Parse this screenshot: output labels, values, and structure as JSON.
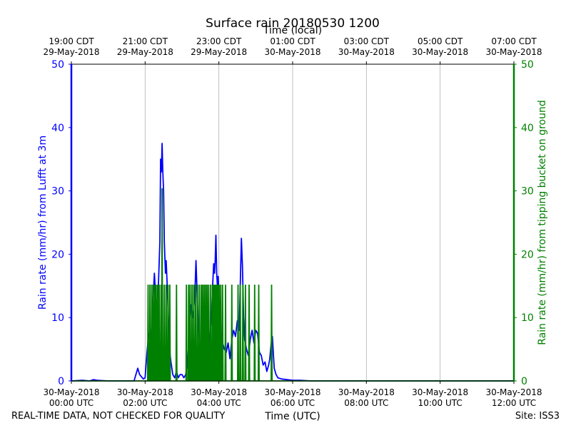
{
  "chart_data": {
    "type": "line",
    "title": "Surface rain 20180530 1200",
    "x_axis_bottom": {
      "label": "Time (UTC)",
      "ticks": [
        {
          "line1": "30-May-2018",
          "line2": "00:00 UTC",
          "hours": 0
        },
        {
          "line1": "30-May-2018",
          "line2": "02:00 UTC",
          "hours": 2
        },
        {
          "line1": "30-May-2018",
          "line2": "04:00 UTC",
          "hours": 4
        },
        {
          "line1": "30-May-2018",
          "line2": "06:00 UTC",
          "hours": 6
        },
        {
          "line1": "30-May-2018",
          "line2": "08:00 UTC",
          "hours": 8
        },
        {
          "line1": "30-May-2018",
          "line2": "10:00 UTC",
          "hours": 10
        },
        {
          "line1": "30-May-2018",
          "line2": "12:00 UTC",
          "hours": 12
        }
      ],
      "range_hours_utc": [
        0,
        12
      ]
    },
    "x_axis_top": {
      "label": "Time (local)",
      "ticks": [
        {
          "line1": "19:00 CDT",
          "line2": "29-May-2018",
          "hours": 0
        },
        {
          "line1": "21:00 CDT",
          "line2": "29-May-2018",
          "hours": 2
        },
        {
          "line1": "23:00 CDT",
          "line2": "29-May-2018",
          "hours": 4
        },
        {
          "line1": "01:00 CDT",
          "line2": "30-May-2018",
          "hours": 6
        },
        {
          "line1": "03:00 CDT",
          "line2": "30-May-2018",
          "hours": 8
        },
        {
          "line1": "05:00 CDT",
          "line2": "30-May-2018",
          "hours": 10
        },
        {
          "line1": "07:00 CDT",
          "line2": "30-May-2018",
          "hours": 12
        }
      ]
    },
    "y_axis_left": {
      "label": "Rain rate (mm/hr) from Lufft at 3m",
      "ticks": [
        0,
        10,
        20,
        30,
        40,
        50
      ],
      "range": [
        0,
        50
      ],
      "color": "#0000ff"
    },
    "y_axis_right": {
      "label": "Rain rate (mm/hr) from tipping bucket on ground",
      "ticks": [
        0,
        10,
        20,
        30,
        40,
        50
      ],
      "range": [
        0,
        50
      ],
      "color": "#008000"
    },
    "grid": "vertical",
    "series": [
      {
        "axis": "left",
        "color": "#0000ff",
        "points": [
          [
            0.0,
            0
          ],
          [
            0.3,
            0.1
          ],
          [
            0.5,
            0
          ],
          [
            0.6,
            0.2
          ],
          [
            0.7,
            0.1
          ],
          [
            1.0,
            0
          ],
          [
            1.7,
            0
          ],
          [
            1.8,
            2.0
          ],
          [
            1.85,
            1.0
          ],
          [
            1.95,
            0.3
          ],
          [
            2.0,
            0.5
          ],
          [
            2.05,
            4.5
          ],
          [
            2.1,
            7.5
          ],
          [
            2.15,
            6.0
          ],
          [
            2.2,
            11.0
          ],
          [
            2.25,
            17.0
          ],
          [
            2.28,
            14.0
          ],
          [
            2.32,
            11.0
          ],
          [
            2.36,
            15.0
          ],
          [
            2.4,
            22.0
          ],
          [
            2.42,
            35.0
          ],
          [
            2.44,
            33.0
          ],
          [
            2.46,
            37.5
          ],
          [
            2.48,
            33.0
          ],
          [
            2.5,
            30.0
          ],
          [
            2.52,
            22.0
          ],
          [
            2.55,
            17.0
          ],
          [
            2.57,
            19.0
          ],
          [
            2.6,
            15.0
          ],
          [
            2.63,
            10.0
          ],
          [
            2.66,
            5.0
          ],
          [
            2.7,
            3.0
          ],
          [
            2.75,
            1.0
          ],
          [
            2.8,
            0.5
          ],
          [
            2.85,
            1.5
          ],
          [
            2.9,
            0.5
          ],
          [
            2.95,
            1.0
          ],
          [
            3.0,
            1.0
          ],
          [
            3.05,
            0.5
          ],
          [
            3.1,
            1.0
          ],
          [
            3.15,
            2.5
          ],
          [
            3.2,
            8.0
          ],
          [
            3.25,
            12.0
          ],
          [
            3.3,
            10.0
          ],
          [
            3.35,
            14.0
          ],
          [
            3.38,
            19.0
          ],
          [
            3.42,
            12.0
          ],
          [
            3.46,
            7.0
          ],
          [
            3.5,
            5.0
          ],
          [
            3.55,
            3.5
          ],
          [
            3.6,
            4.0
          ],
          [
            3.65,
            3.0
          ],
          [
            3.7,
            4.5
          ],
          [
            3.75,
            7.0
          ],
          [
            3.8,
            10.0
          ],
          [
            3.83,
            15.0
          ],
          [
            3.86,
            18.5
          ],
          [
            3.88,
            17.0
          ],
          [
            3.9,
            19.0
          ],
          [
            3.92,
            23.0
          ],
          [
            3.94,
            17.0
          ],
          [
            3.96,
            15.0
          ],
          [
            3.98,
            16.5
          ],
          [
            4.0,
            14.0
          ],
          [
            4.03,
            11.0
          ],
          [
            4.07,
            7.0
          ],
          [
            4.1,
            6.0
          ],
          [
            4.15,
            5.0
          ],
          [
            4.2,
            4.5
          ],
          [
            4.25,
            6.0
          ],
          [
            4.3,
            3.5
          ],
          [
            4.35,
            6.5
          ],
          [
            4.4,
            8.0
          ],
          [
            4.45,
            7.0
          ],
          [
            4.5,
            9.5
          ],
          [
            4.55,
            8.0
          ],
          [
            4.58,
            15.0
          ],
          [
            4.61,
            22.5
          ],
          [
            4.64,
            18.0
          ],
          [
            4.67,
            10.0
          ],
          [
            4.7,
            6.5
          ],
          [
            4.75,
            5.0
          ],
          [
            4.8,
            4.0
          ],
          [
            4.85,
            6.5
          ],
          [
            4.9,
            8.0
          ],
          [
            4.95,
            6.0
          ],
          [
            5.0,
            8.0
          ],
          [
            5.05,
            7.5
          ],
          [
            5.1,
            4.5
          ],
          [
            5.15,
            4.0
          ],
          [
            5.2,
            2.5
          ],
          [
            5.25,
            3.0
          ],
          [
            5.3,
            1.5
          ],
          [
            5.35,
            2.5
          ],
          [
            5.38,
            3.5
          ],
          [
            5.42,
            6.0
          ],
          [
            5.45,
            7.0
          ],
          [
            5.5,
            2.0
          ],
          [
            5.55,
            1.0
          ],
          [
            5.6,
            0.5
          ],
          [
            5.7,
            0.3
          ],
          [
            6.0,
            0.1
          ],
          [
            6.2,
            0.1
          ],
          [
            6.5,
            0
          ],
          [
            12.0,
            0
          ]
        ]
      },
      {
        "axis": "right",
        "color": "#008000",
        "tip_height": 15.2,
        "tip_hours": [
          2.08,
          2.13,
          2.18,
          2.22,
          2.26,
          2.3,
          2.34,
          2.38,
          2.43,
          2.47,
          2.52,
          2.57,
          2.62,
          2.67,
          2.85,
          3.12,
          3.18,
          3.22,
          3.27,
          3.32,
          3.37,
          3.42,
          3.47,
          3.52,
          3.56,
          3.6,
          3.64,
          3.68,
          3.72,
          3.77,
          3.82,
          3.86,
          3.89,
          3.92,
          3.95,
          3.98,
          4.01,
          4.05,
          4.1,
          4.18,
          4.35,
          4.52,
          4.58,
          4.65,
          4.72,
          4.82,
          4.97,
          5.08,
          5.43
        ],
        "peak": {
          "hours": 2.46,
          "value": 30.4
        }
      }
    ]
  },
  "footer": {
    "quality_note": "REAL-TIME DATA, NOT CHECKED FOR QUALITY",
    "site": "Site: ISS3"
  }
}
